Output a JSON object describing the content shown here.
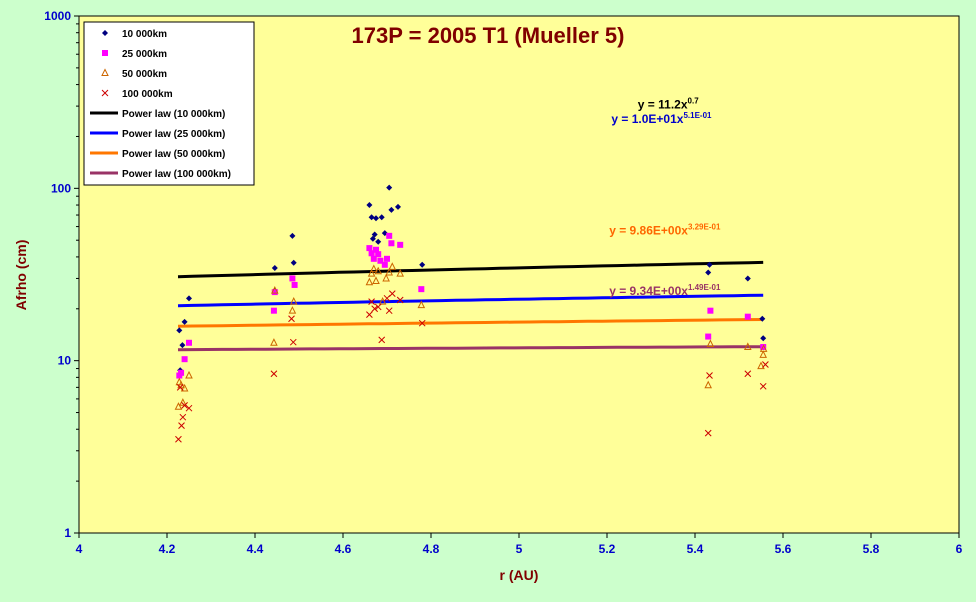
{
  "chart_data": {
    "type": "scatter",
    "title": "173P = 2005 T1 (Mueller 5)",
    "xlabel": "r (AU)",
    "ylabel": "Afrho (cm)",
    "xlim": [
      4,
      6
    ],
    "ylim": [
      1,
      1000
    ],
    "yscale": "log",
    "x_ticks": [
      "4",
      "4.2",
      "4.4",
      "4.6",
      "4.8",
      "5",
      "5.2",
      "5.4",
      "5.6",
      "5.8",
      "6"
    ],
    "y_ticks": [
      "1",
      "10",
      "100",
      "1000"
    ],
    "legend_position": "top-left",
    "grid": false,
    "colors": {
      "plot_background": "#ffff99",
      "page_background": "#ccffcc",
      "title": "#800000",
      "ticks": "#0000cc"
    },
    "series": [
      {
        "name": "10 000km",
        "marker": "diamond",
        "color": "#000080",
        "points": [
          [
            4.228,
            15
          ],
          [
            4.23,
            8.8
          ],
          [
            4.235,
            12.3
          ],
          [
            4.24,
            16.8
          ],
          [
            4.25,
            23
          ],
          [
            4.445,
            34.5
          ],
          [
            4.445,
            25.5
          ],
          [
            4.485,
            53
          ],
          [
            4.488,
            37
          ],
          [
            4.66,
            80
          ],
          [
            4.665,
            68
          ],
          [
            4.668,
            51
          ],
          [
            4.672,
            54
          ],
          [
            4.675,
            67
          ],
          [
            4.68,
            49
          ],
          [
            4.688,
            68
          ],
          [
            4.695,
            55
          ],
          [
            4.705,
            101
          ],
          [
            4.71,
            75
          ],
          [
            4.725,
            78
          ],
          [
            4.78,
            36
          ],
          [
            5.43,
            32.5
          ],
          [
            5.433,
            36
          ],
          [
            5.52,
            30
          ],
          [
            5.553,
            17.5
          ],
          [
            5.555,
            13.5
          ]
        ]
      },
      {
        "name": "25 000km",
        "marker": "square",
        "color": "#ff00ff",
        "points": [
          [
            4.228,
            8.2
          ],
          [
            4.232,
            8.5
          ],
          [
            4.24,
            10.2
          ],
          [
            4.25,
            12.7
          ],
          [
            4.443,
            19.5
          ],
          [
            4.445,
            25
          ],
          [
            4.485,
            30
          ],
          [
            4.49,
            27.5
          ],
          [
            4.66,
            45
          ],
          [
            4.665,
            42
          ],
          [
            4.67,
            39
          ],
          [
            4.675,
            44
          ],
          [
            4.68,
            41.5
          ],
          [
            4.685,
            38
          ],
          [
            4.695,
            36
          ],
          [
            4.7,
            39
          ],
          [
            4.705,
            53
          ],
          [
            4.71,
            48
          ],
          [
            4.73,
            47
          ],
          [
            4.778,
            26
          ],
          [
            5.43,
            13.8
          ],
          [
            5.435,
            19.5
          ],
          [
            5.52,
            18
          ],
          [
            5.555,
            12
          ]
        ]
      },
      {
        "name": "50 000km",
        "marker": "triangle",
        "color": "#cc6600",
        "points": [
          [
            4.226,
            5.4
          ],
          [
            4.228,
            7.5
          ],
          [
            4.232,
            7.2
          ],
          [
            4.236,
            5.7
          ],
          [
            4.24,
            6.9
          ],
          [
            4.25,
            8.2
          ],
          [
            4.443,
            12.7
          ],
          [
            4.445,
            25.5
          ],
          [
            4.485,
            19.5
          ],
          [
            4.488,
            22
          ],
          [
            4.66,
            28.5
          ],
          [
            4.665,
            32
          ],
          [
            4.67,
            34
          ],
          [
            4.675,
            29
          ],
          [
            4.68,
            33
          ],
          [
            4.69,
            22
          ],
          [
            4.698,
            30
          ],
          [
            4.705,
            32.5
          ],
          [
            4.712,
            35
          ],
          [
            4.73,
            32
          ],
          [
            4.778,
            21
          ],
          [
            5.43,
            7.2
          ],
          [
            5.435,
            12.5
          ],
          [
            5.52,
            12
          ],
          [
            5.55,
            9.3
          ],
          [
            5.555,
            10.8
          ],
          [
            5.556,
            11.7
          ]
        ]
      },
      {
        "name": "100 000km",
        "marker": "x",
        "color": "#cc0000",
        "points": [
          [
            4.226,
            3.5
          ],
          [
            4.23,
            7
          ],
          [
            4.233,
            4.2
          ],
          [
            4.236,
            4.7
          ],
          [
            4.24,
            5.5
          ],
          [
            4.25,
            5.3
          ],
          [
            4.443,
            8.4
          ],
          [
            4.483,
            17.5
          ],
          [
            4.487,
            12.8
          ],
          [
            4.66,
            18.5
          ],
          [
            4.665,
            22
          ],
          [
            4.672,
            20
          ],
          [
            4.68,
            20.5
          ],
          [
            4.688,
            13.2
          ],
          [
            4.7,
            23
          ],
          [
            4.705,
            19.5
          ],
          [
            4.712,
            24.5
          ],
          [
            4.73,
            22.5
          ],
          [
            4.78,
            16.5
          ],
          [
            5.43,
            3.8
          ],
          [
            5.433,
            8.2
          ],
          [
            5.52,
            8.4
          ],
          [
            5.555,
            7.1
          ],
          [
            5.56,
            9.5
          ]
        ]
      }
    ],
    "trendlines": [
      {
        "name": "Power law (10 000km)",
        "color": "#000000",
        "coef": 11.2,
        "exp": 0.7,
        "x_range": [
          4.225,
          5.555
        ],
        "label_base": "y = 11.2x",
        "label_exp": "0.7",
        "label_at": [
          5.27,
          290
        ],
        "label_color": "#000000"
      },
      {
        "name": "Power law (25 000km)",
        "color": "#0000ff",
        "coef": 10,
        "exp": 0.51,
        "x_range": [
          4.225,
          5.555
        ],
        "label_base": "y = 1.0E+01x",
        "label_exp": "5.1E-01",
        "label_at": [
          5.21,
          240
        ],
        "label_color": "#0000cc"
      },
      {
        "name": "Power law (50 000km)",
        "color": "#ff7700",
        "coef": 9.86,
        "exp": 0.329,
        "x_range": [
          4.225,
          5.555
        ],
        "label_base": "y = 9.86E+00x",
        "label_exp": "3.29E-01",
        "label_at": [
          5.205,
          54
        ],
        "label_color": "#ff6600"
      },
      {
        "name": "Power law (100 000km)",
        "color": "#993366",
        "coef": 9.34,
        "exp": 0.149,
        "x_range": [
          4.225,
          5.555
        ],
        "label_base": "y = 9.34E+00x",
        "label_exp": "1.49E-01",
        "label_at": [
          5.205,
          24
        ],
        "label_color": "#993366"
      }
    ]
  }
}
